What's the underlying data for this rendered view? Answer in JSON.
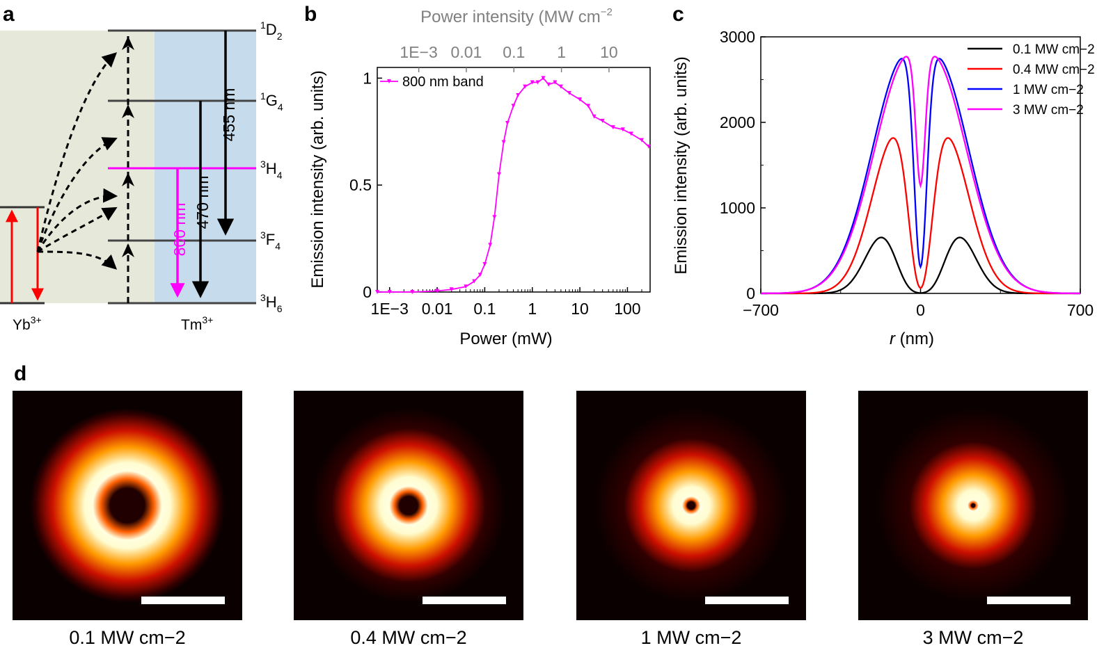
{
  "panels": {
    "a": "a",
    "b": "b",
    "c": "c",
    "d": "d"
  },
  "colors": {
    "yb_bg": "#e6e8da",
    "tm_bg": "#c6dbec",
    "red": "#ff0000",
    "magenta": "#ff00ff",
    "blue": "#0000ff",
    "black": "#000000",
    "gray_axis": "#808080"
  },
  "panel_a": {
    "ion_yb": "Yb",
    "ion_yb_sup": "3+",
    "ion_tm": "Tm",
    "ion_tm_sup": "3+",
    "levels": [
      {
        "sup": "1",
        "name": "D",
        "sub": "2"
      },
      {
        "sup": "1",
        "name": "G",
        "sub": "4"
      },
      {
        "sup": "3",
        "name": "H",
        "sub": "4"
      },
      {
        "sup": "3",
        "name": "F",
        "sub": "4"
      },
      {
        "sup": "3",
        "name": "H",
        "sub": "6"
      }
    ],
    "transitions": [
      {
        "label": "455 nm"
      },
      {
        "label": "470 nm"
      },
      {
        "label": "800 nm"
      }
    ]
  },
  "chart_data": [
    {
      "id": "b",
      "type": "line",
      "title": "",
      "xlabel": "Power (mW)",
      "ylabel": "Emission intensity (arb. units)",
      "top_xlabel": "Power intensity (MW cm−2)",
      "x_scale": "log",
      "xlim": [
        0.00055,
        300
      ],
      "ylim": [
        0,
        1.05
      ],
      "x_ticks": [
        {
          "value": 0.001,
          "label": "1E−3"
        },
        {
          "value": 0.01,
          "label": "0.01"
        },
        {
          "value": 0.1,
          "label": "0.1"
        },
        {
          "value": 1,
          "label": "1"
        },
        {
          "value": 10,
          "label": "10"
        },
        {
          "value": 100,
          "label": "100"
        }
      ],
      "top_ticks": [
        {
          "value": 0.001,
          "label": "1E−3"
        },
        {
          "value": 0.01,
          "label": "0.01"
        },
        {
          "value": 0.1,
          "label": "0.1"
        },
        {
          "value": 1,
          "label": "1"
        },
        {
          "value": 10,
          "label": "10"
        }
      ],
      "y_ticks": [
        {
          "value": 0,
          "label": "0"
        },
        {
          "value": 0.5,
          "label": "0.5"
        },
        {
          "value": 1,
          "label": "1"
        }
      ],
      "legend": "top-left",
      "series": [
        {
          "name": "800 nm band",
          "color": "#ff00ff",
          "x": [
            0.00055,
            0.001,
            0.003,
            0.01,
            0.02,
            0.04,
            0.06,
            0.08,
            0.1,
            0.13,
            0.16,
            0.2,
            0.25,
            0.3,
            0.4,
            0.5,
            0.7,
            1.0,
            1.3,
            1.7,
            2.2,
            3.0,
            4.0,
            6.0,
            10,
            15,
            20,
            30,
            50,
            80,
            120,
            200,
            280
          ],
          "y": [
            0.0,
            0.0,
            0.0,
            0.005,
            0.012,
            0.025,
            0.05,
            0.08,
            0.13,
            0.22,
            0.35,
            0.55,
            0.7,
            0.79,
            0.87,
            0.92,
            0.96,
            0.98,
            0.98,
            1.0,
            0.97,
            0.98,
            0.96,
            0.93,
            0.9,
            0.87,
            0.82,
            0.8,
            0.77,
            0.76,
            0.74,
            0.71,
            0.68
          ]
        }
      ]
    },
    {
      "id": "c",
      "type": "line",
      "title": "",
      "xlabel_italic": "r",
      "xlabel": " (nm)",
      "ylabel": "Emission intensity (arb. units)",
      "xlim": [
        -700,
        700
      ],
      "ylim": [
        0,
        3000
      ],
      "x_ticks": [
        {
          "value": -700,
          "label": "−700"
        },
        {
          "value": 0,
          "label": "0"
        },
        {
          "value": 700,
          "label": "700"
        }
      ],
      "y_ticks": [
        {
          "value": 0,
          "label": "0"
        },
        {
          "value": 1000,
          "label": "1000"
        },
        {
          "value": 2000,
          "label": "2000"
        },
        {
          "value": 3000,
          "label": "3000"
        }
      ],
      "legend": "top-right",
      "series": [
        {
          "name": "0.1 MW cm−2",
          "color": "#000000",
          "peak_r": 160,
          "sigma": 80,
          "height": 700
        },
        {
          "name": "0.4 MW cm−2",
          "color": "#ff0000",
          "peak_r": 100,
          "sigma": 110,
          "height": 1900
        },
        {
          "name": "1 MW cm−2",
          "color": "#0000ff",
          "peak_r": 60,
          "sigma": 150,
          "height": 2800
        },
        {
          "name": "3 MW cm−2",
          "color": "#ff00ff",
          "peak_r": 45,
          "sigma": 155,
          "height": 2800
        }
      ]
    }
  ],
  "panel_d": {
    "images": [
      {
        "caption": "0.1 MW cm−2",
        "hole_frac": 0.32
      },
      {
        "caption": "0.4 MW cm−2",
        "hole_frac": 0.17
      },
      {
        "caption": "1 MW cm−2",
        "hole_frac": 0.07
      },
      {
        "caption": "3 MW cm−2",
        "hole_frac": 0.035
      }
    ]
  }
}
